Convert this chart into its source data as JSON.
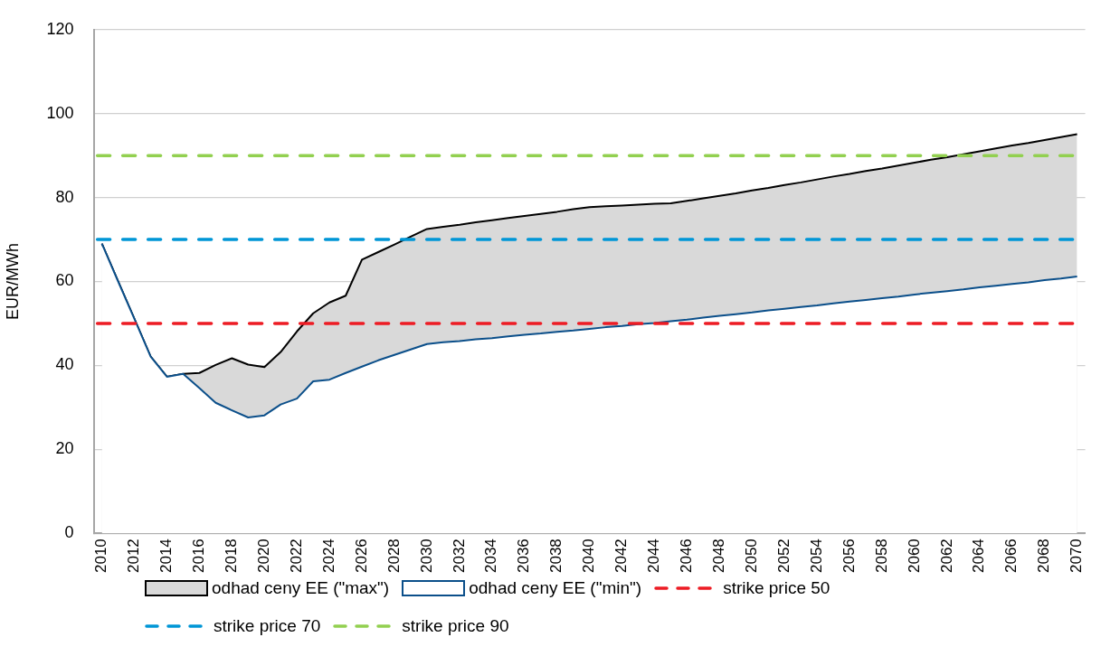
{
  "chart_data": {
    "type": "area",
    "ylabel": "EUR/MWh",
    "categories": [
      "2010",
      null,
      "2012",
      null,
      "2014",
      null,
      "2016",
      null,
      "2018",
      null,
      "2020",
      null,
      "2022",
      null,
      "2024",
      null,
      "2026",
      null,
      "2028",
      null,
      "2030",
      null,
      "2032",
      null,
      "2034",
      null,
      "2036",
      null,
      "2038",
      null,
      "2040",
      null,
      "2042",
      null,
      "2044",
      null,
      "2046",
      null,
      "2048",
      null,
      "2050",
      null,
      "2052",
      null,
      "2054",
      null,
      "2056",
      null,
      "2058",
      null,
      "2060",
      null,
      "2062",
      null,
      "2064",
      null,
      "2066",
      null,
      "2068",
      null,
      "2070"
    ],
    "series": [
      {
        "name": "odhad ceny EE (\"max\")",
        "color": "#d9d9d9",
        "values": [
          69,
          60,
          51.1,
          42.1,
          37.3,
          38,
          38.2,
          40.1,
          41.7,
          40.2,
          39.6,
          43.2,
          48.1,
          52.4,
          55,
          56.6,
          65.2,
          67,
          68.8,
          70.7,
          72.5,
          73,
          73.5,
          74.1,
          74.6,
          75.1,
          75.6,
          76.1,
          76.6,
          77.2,
          77.7,
          77.9,
          78.1,
          78.3,
          78.5,
          78.6,
          79.2,
          79.8,
          80.4,
          81,
          81.7,
          82.3,
          83,
          83.6,
          84.3,
          85,
          85.6,
          86.3,
          86.9,
          87.6,
          88.3,
          89,
          89.6,
          90.3,
          91,
          91.7,
          92.4,
          93,
          93.7,
          94.4,
          95.1
        ]
      },
      {
        "name": "odhad ceny EE (\"min\")",
        "color": "#ffffff",
        "values": [
          69,
          60,
          51.1,
          42.1,
          37.3,
          38,
          34.6,
          31.1,
          29.3,
          27.6,
          28.1,
          30.7,
          32.1,
          36.2,
          36.6,
          38.2,
          39.7,
          41.2,
          42.5,
          43.8,
          45.1,
          45.5,
          45.8,
          46.2,
          46.5,
          46.9,
          47.3,
          47.6,
          48,
          48.3,
          48.7,
          49.1,
          49.4,
          49.8,
          50.1,
          50.5,
          50.9,
          51.4,
          51.8,
          52.2,
          52.6,
          53.1,
          53.5,
          53.9,
          54.3,
          54.8,
          55.2,
          55.6,
          56,
          56.4,
          56.9,
          57.3,
          57.7,
          58.1,
          58.6,
          59,
          59.4,
          59.8,
          60.3,
          60.7,
          61.2
        ]
      }
    ],
    "ylim": [
      0,
      120
    ],
    "yticks": [
      0,
      20,
      40,
      60,
      80,
      100,
      120
    ],
    "grid": "y",
    "legend": "bottom",
    "ref_lines": [
      {
        "axis": "y",
        "value": 50,
        "label": "strike price 50",
        "color": "#ed1c24",
        "line_style": "dashed"
      },
      {
        "axis": "y",
        "value": 70,
        "label": "strike price 70",
        "color": "#0096d6",
        "line_style": "dashed"
      },
      {
        "axis": "y",
        "value": 90,
        "label": "strike price 90",
        "color": "#92d050",
        "line_style": "dashed"
      }
    ]
  }
}
